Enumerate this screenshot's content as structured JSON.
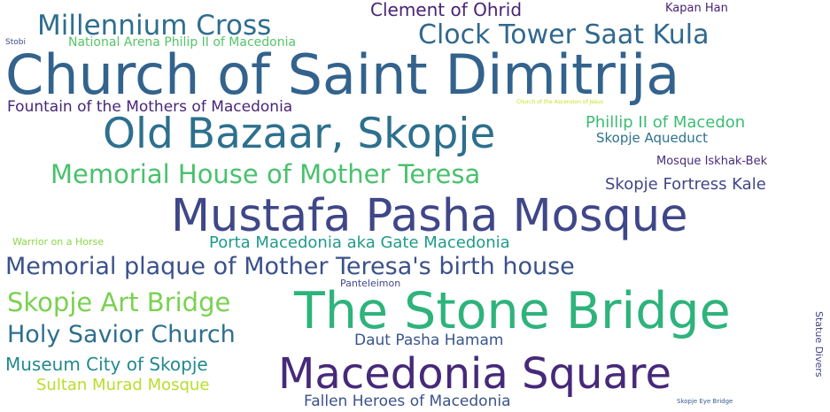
{
  "word_cloud": {
    "words": [
      {
        "text": "Church of Saint Dimitrija",
        "color": "#33638d"
      },
      {
        "text": "Mustafa Pasha Mosque",
        "color": "#3f4788"
      },
      {
        "text": "The Stone Bridge",
        "color": "#2eb37c"
      },
      {
        "text": "Macedonia Square",
        "color": "#46297a"
      },
      {
        "text": "Old Bazaar, Skopje",
        "color": "#2d708e"
      },
      {
        "text": "Memorial plaque of Mother Teresa's birth house",
        "color": "#3b518b"
      },
      {
        "text": "Millennium Cross",
        "color": "#2e6e8e"
      },
      {
        "text": "Clock Tower Saat Kula",
        "color": "#31688e"
      },
      {
        "text": "Memorial House of Mother Teresa",
        "color": "#4ac16d"
      },
      {
        "text": "Skopje Art Bridge",
        "color": "#7ad151"
      },
      {
        "text": "Holy Savior Church",
        "color": "#2e6f8e"
      },
      {
        "text": "Museum City of Skopje",
        "color": "#23898e"
      },
      {
        "text": "Fountain of the Mothers of Macedonia",
        "color": "#482677"
      },
      {
        "text": "Clement of Ohrid",
        "color": "#482475"
      },
      {
        "text": "Porta Macedonia aka Gate Macedonia",
        "color": "#1f9a8a"
      },
      {
        "text": "Phillip II of Macedon",
        "color": "#3dbc74"
      },
      {
        "text": "Skopje Fortress Kale",
        "color": "#404688"
      },
      {
        "text": "Sultan Murad Mosque",
        "color": "#b8de29"
      },
      {
        "text": "Daut Pasha Hamam",
        "color": "#39558c"
      },
      {
        "text": "Fallen Heroes of Macedonia",
        "color": "#3b528b"
      },
      {
        "text": "Skopje Aqueduct",
        "color": "#2c728e"
      },
      {
        "text": "Mosque Iskhak-Bek",
        "color": "#472d7b"
      },
      {
        "text": "National Arena Philip II of Macedonia",
        "color": "#54c568"
      },
      {
        "text": "Kapan Han",
        "color": "#482173"
      },
      {
        "text": "Warrior on a Horse",
        "color": "#8bd646"
      },
      {
        "text": "Panteleimon",
        "color": "#3e4989"
      },
      {
        "text": "Statue Divers",
        "color": "#424086"
      },
      {
        "text": "Stobi",
        "color": "#3e4a89"
      },
      {
        "text": "Church of the Ascension of Jesus",
        "color": "#c8e020"
      },
      {
        "text": "Skopje Eye Bridge",
        "color": "#38598c"
      }
    ]
  }
}
